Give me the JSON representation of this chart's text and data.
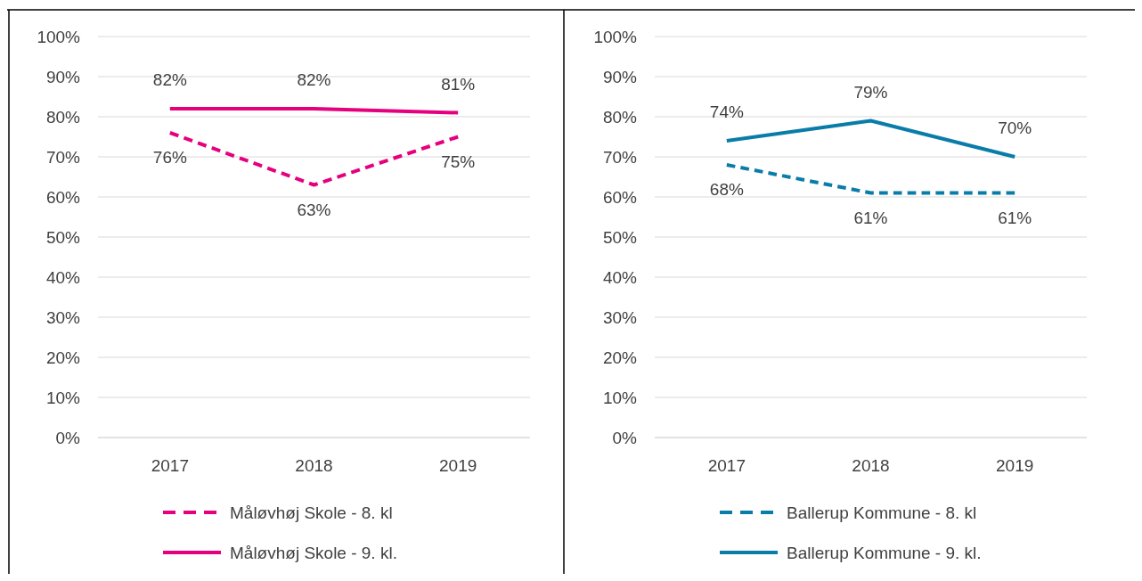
{
  "chart_data": [
    {
      "type": "line",
      "categories": [
        "2017",
        "2018",
        "2019"
      ],
      "ylim": [
        0,
        100
      ],
      "yticks": [
        {
          "value": 0,
          "label": "0%"
        },
        {
          "value": 10,
          "label": "10%"
        },
        {
          "value": 20,
          "label": "20%"
        },
        {
          "value": 30,
          "label": "30%"
        },
        {
          "value": 40,
          "label": "40%"
        },
        {
          "value": 50,
          "label": "50%"
        },
        {
          "value": 60,
          "label": "60%"
        },
        {
          "value": 70,
          "label": "70%"
        },
        {
          "value": 80,
          "label": "80%"
        },
        {
          "value": 90,
          "label": "90%"
        },
        {
          "value": 100,
          "label": "100%"
        }
      ],
      "grid": "y",
      "legend": "bottom",
      "series": [
        {
          "name": "Måløvhøj Skole - 8. kl",
          "color": "#e6007e",
          "line_style": "dashed",
          "values": [
            76,
            63,
            75
          ],
          "value_labels": [
            "76%",
            "63%",
            "75%"
          ]
        },
        {
          "name": "Måløvhøj Skole - 9. kl.",
          "color": "#e6007e",
          "line_style": "solid",
          "values": [
            82,
            82,
            81
          ],
          "value_labels": [
            "82%",
            "82%",
            "81%"
          ]
        }
      ]
    },
    {
      "type": "line",
      "categories": [
        "2017",
        "2018",
        "2019"
      ],
      "ylim": [
        0,
        100
      ],
      "yticks": [
        {
          "value": 0,
          "label": "0%"
        },
        {
          "value": 10,
          "label": "10%"
        },
        {
          "value": 20,
          "label": "20%"
        },
        {
          "value": 30,
          "label": "30%"
        },
        {
          "value": 40,
          "label": "40%"
        },
        {
          "value": 50,
          "label": "50%"
        },
        {
          "value": 60,
          "label": "60%"
        },
        {
          "value": 70,
          "label": "70%"
        },
        {
          "value": 80,
          "label": "80%"
        },
        {
          "value": 90,
          "label": "90%"
        },
        {
          "value": 100,
          "label": "100%"
        }
      ],
      "grid": "y",
      "legend": "bottom",
      "series": [
        {
          "name": "Ballerup Kommune - 8. kl",
          "color": "#0a7ca8",
          "line_style": "dashed",
          "values": [
            68,
            61,
            61
          ],
          "value_labels": [
            "68%",
            "61%",
            "61%"
          ]
        },
        {
          "name": "Ballerup Kommune - 9. kl.",
          "color": "#0a7ca8",
          "line_style": "solid",
          "values": [
            74,
            79,
            70
          ],
          "value_labels": [
            "74%",
            "79%",
            "70%"
          ]
        }
      ]
    }
  ]
}
